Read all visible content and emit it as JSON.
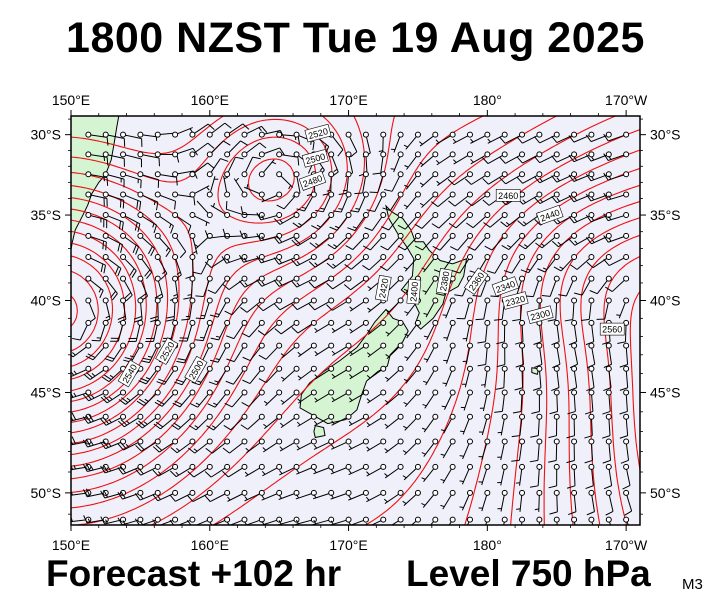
{
  "header": {
    "title": "1800 NZST Tue 19 Aug 2025"
  },
  "footer": {
    "forecast": "Forecast +102 hr",
    "level": "Level 750 hPa",
    "model": "M3"
  },
  "map": {
    "projection": "mercator",
    "lon_range": [
      150,
      191
    ],
    "lat_range": [
      -51.5,
      -28.8
    ],
    "lon_ticks": [
      "150°E",
      "160°E",
      "170°E",
      "180°",
      "170°W"
    ],
    "lat_ticks": [
      "30°S",
      "35°S",
      "40°S",
      "45°S",
      "50°S"
    ],
    "colors": {
      "ocean": "#f0f0fb",
      "land": "#d5f5d2",
      "contour": "#ee1111",
      "barb": "#000000"
    },
    "contour_labels": [
      "2520",
      "2500",
      "2480",
      "2460",
      "2440",
      "2420",
      "2400",
      "2380",
      "2360",
      "2340",
      "2320",
      "2300",
      "2560",
      "2540",
      "2520",
      "2500"
    ],
    "grid_spacing_deg": 1.25
  }
}
